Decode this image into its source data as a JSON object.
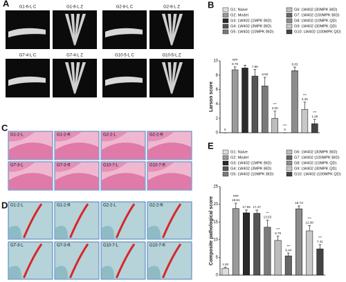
{
  "panels": [
    {
      "label": "A",
      "kind": "xray",
      "tiles": [
        "G1-6-L C",
        "G1-6-L Z",
        "G2-8-L C",
        "G2-8-L Z",
        "G7-4-L C",
        "G7-4-L Z",
        "G10-5-L C",
        "G10-5-L Z"
      ]
    },
    {
      "label": "C",
      "kind": "he",
      "tiles": [
        "G1-2-L",
        "G1-2-R",
        "G2-2-L",
        "G2-2-R",
        "G7-3-L",
        "G7-3-R",
        "G10-7-L",
        "G10-7-R"
      ]
    },
    {
      "label": "D",
      "kind": "safranin",
      "tiles": [
        "G1-2-L",
        "G1-2-R",
        "G2-2-L",
        "G2-2-R",
        "G7-3-L",
        "G7-3-R",
        "G10-7-L",
        "G10-7-R"
      ]
    }
  ],
  "chart_data": [
    {
      "type": "bar",
      "panel_label": "B",
      "ylabel": "Larson score",
      "categories": [
        "G1: Naive",
        "G2: Model",
        "G3: LW402 (1MPK BID)",
        "G4: LW402 (3MPK BID)",
        "G5: LW402 (10MPK BID)",
        "G6: LW402 (30MPK BID)",
        "G7: LW402 (100MPK BID)",
        "G8: LW402 (10MPK QD)",
        "G9: LW402 (30MPK QD)",
        "G10: LW402 (100MPK QD)"
      ],
      "values": [
        0,
        8.75,
        9.0,
        7.88,
        6.5,
        2.0,
        0,
        8.63,
        3.25,
        1.25
      ],
      "value_labels": [
        "0",
        "8.75",
        null,
        "7.88",
        "6.50",
        "2.00",
        "0",
        "8.63",
        "3.25",
        "1.25"
      ],
      "errors": [
        0,
        0.4,
        0.4,
        0.9,
        1.2,
        1.0,
        0,
        0.5,
        1.0,
        0.6
      ],
      "annotations": [
        null,
        "###",
        null,
        null,
        null,
        "***",
        "***",
        null,
        "***",
        "***"
      ],
      "colors": [
        "#dddddd",
        "#9a9a9a",
        "#2a2a2a",
        "#555555",
        "#7a7a7a",
        "#bdbdbd",
        "#666666",
        "#8c8c8c",
        "#c8c8c8",
        "#444444"
      ],
      "ylim": [
        0,
        10
      ],
      "yticks": [
        0,
        2,
        4,
        6,
        8,
        10
      ]
    },
    {
      "type": "bar",
      "panel_label": "E",
      "ylabel": "Composite pathological score",
      "categories": [
        "G1: Naive",
        "G2: Model",
        "G3: LW402 (1MPK BID)",
        "G4: LW402 (3MPK BID)",
        "G5: LW402 (10MPK BID)",
        "G6: LW402 (30MPK BID)",
        "G7: LW402 (100MPK BID)",
        "G8: LW402 (10MPK QD)",
        "G9: LW402 (30MPK QD)",
        "G10: LW402 (100MPK QD)"
      ],
      "values": [
        1.93,
        18.81,
        17.59,
        17.47,
        13.53,
        9.79,
        5.44,
        18.73,
        12.5,
        7.41
      ],
      "value_labels": [
        "1.93",
        "18.81",
        "17.59",
        "17.47",
        "13.53",
        "9.79",
        "5.44",
        "18.73",
        "12.50",
        "7.41"
      ],
      "errors": [
        0.3,
        1.5,
        0.8,
        0.9,
        2.0,
        1.2,
        0.8,
        0.8,
        1.5,
        1.2
      ],
      "annotations": [
        null,
        "###",
        null,
        null,
        "**",
        "***",
        "***",
        null,
        "***",
        "***"
      ],
      "colors": [
        "#dddddd",
        "#9a9a9a",
        "#2a2a2a",
        "#555555",
        "#7a7a7a",
        "#bdbdbd",
        "#666666",
        "#8c8c8c",
        "#c8c8c8",
        "#444444"
      ],
      "ylim": [
        0,
        25
      ],
      "yticks": [
        0,
        5,
        10,
        15,
        20,
        25
      ]
    }
  ]
}
